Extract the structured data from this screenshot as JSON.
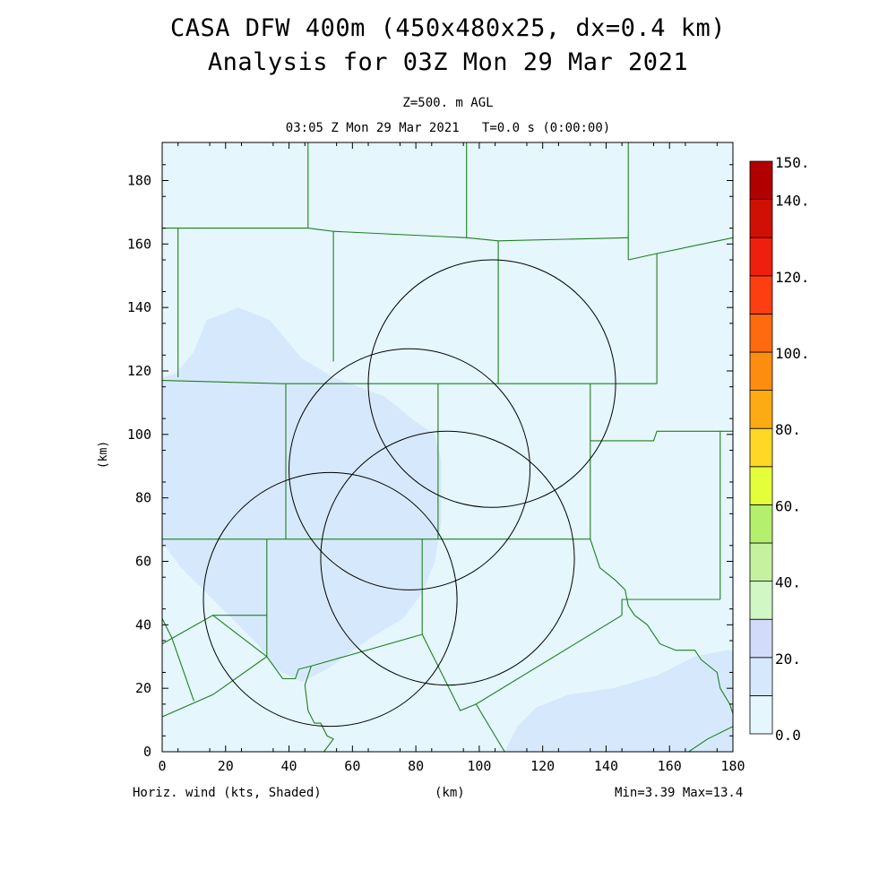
{
  "header": {
    "title_line1": "CASA DFW 400m (450x480x25, dx=0.4 km)",
    "title_line2": "Analysis for 03Z Mon 29 Mar 2021",
    "level": "Z=500. m AGL",
    "time": "03:05 Z Mon 29 Mar 2021   T=0.0 s (0:00:00)"
  },
  "footer": {
    "field": "Horiz. wind (kts, Shaded)",
    "xunit": "(km)",
    "minmax": "Min=3.39 Max=13.4"
  },
  "chart_data": {
    "type": "heatmap",
    "title": "CASA DFW 400m (450x480x25, dx=0.4 km)",
    "subtitle": "Analysis for 03Z Mon 29 Mar 2021",
    "field": "Horiz. wind (kts, Shaded)",
    "xlabel": "(km)",
    "ylabel": "(km)",
    "xlim": [
      0,
      180
    ],
    "ylim": [
      0,
      192
    ],
    "xticks": [
      0,
      20,
      40,
      60,
      80,
      100,
      120,
      140,
      160,
      180
    ],
    "yticks": [
      0,
      20,
      40,
      60,
      80,
      100,
      120,
      140,
      160,
      180
    ],
    "min": 3.39,
    "max": 13.4,
    "colorbar": {
      "levels": [
        0,
        10,
        20,
        30,
        40,
        50,
        60,
        70,
        80,
        90,
        100,
        110,
        120,
        130,
        140,
        150
      ],
      "labels": [
        "0.0",
        "20.",
        "40.",
        "60.",
        "80.",
        "100.",
        "120.",
        "140.",
        "150."
      ],
      "label_values": [
        0,
        20,
        40,
        60,
        80,
        100,
        120,
        140,
        150
      ],
      "colors": [
        "#e5f6fd",
        "#d6e9fc",
        "#d3dbfa",
        "#d0f7c4",
        "#c6f2a0",
        "#b4ef6e",
        "#e4ff3a",
        "#ffd725",
        "#fdab12",
        "#fc8d10",
        "#fe6a0f",
        "#fd3e11",
        "#ee1f0e",
        "#d01004",
        "#b10000"
      ]
    },
    "shaded_regions": [
      {
        "level": "10-20",
        "polygon": [
          [
            0,
            118
          ],
          [
            4,
            119
          ],
          [
            10,
            126
          ],
          [
            14,
            136
          ],
          [
            24,
            140
          ],
          [
            34,
            136
          ],
          [
            44,
            124
          ],
          [
            54,
            118
          ],
          [
            70,
            112
          ],
          [
            80,
            104
          ],
          [
            86,
            100
          ],
          [
            88,
            92
          ],
          [
            88,
            72
          ],
          [
            86,
            60
          ],
          [
            82,
            50
          ],
          [
            76,
            42
          ],
          [
            66,
            36
          ],
          [
            52,
            26
          ],
          [
            44,
            22
          ],
          [
            36,
            26
          ],
          [
            30,
            34
          ],
          [
            24,
            40
          ],
          [
            14,
            50
          ],
          [
            6,
            58
          ],
          [
            0,
            66
          ]
        ]
      },
      {
        "level": "10-20",
        "polygon": [
          [
            108,
            0
          ],
          [
            112,
            8
          ],
          [
            118,
            14
          ],
          [
            128,
            18
          ],
          [
            142,
            20
          ],
          [
            156,
            24
          ],
          [
            168,
            30
          ],
          [
            178,
            32
          ],
          [
            180,
            32
          ],
          [
            180,
            0
          ]
        ]
      }
    ],
    "radar_rings": [
      {
        "center": [
          78,
          89
        ],
        "radius_km": 38
      },
      {
        "center": [
          104,
          116
        ],
        "radius_km": 39
      },
      {
        "center": [
          53,
          48
        ],
        "radius_km": 40
      },
      {
        "center": [
          90,
          61
        ],
        "radius_km": 40
      }
    ],
    "county_lines": [
      [
        [
          0,
          165
        ],
        [
          5,
          165
        ],
        [
          5,
          118
        ]
      ],
      [
        [
          5,
          165
        ],
        [
          46,
          165
        ]
      ],
      [
        [
          46,
          192
        ],
        [
          46,
          165
        ]
      ],
      [
        [
          46,
          165
        ],
        [
          54,
          164
        ],
        [
          54,
          123
        ]
      ],
      [
        [
          54,
          164
        ],
        [
          96,
          162
        ],
        [
          106,
          161
        ]
      ],
      [
        [
          96,
          192
        ],
        [
          96,
          162
        ]
      ],
      [
        [
          106,
          161
        ],
        [
          106,
          116
        ]
      ],
      [
        [
          106,
          161
        ],
        [
          147,
          162
        ]
      ],
      [
        [
          147,
          192
        ],
        [
          147,
          155
        ]
      ],
      [
        [
          147,
          155
        ],
        [
          156,
          157
        ],
        [
          180,
          162
        ]
      ],
      [
        [
          156,
          157
        ],
        [
          156,
          116
        ]
      ],
      [
        [
          0,
          117
        ],
        [
          38,
          116
        ],
        [
          96,
          116
        ],
        [
          156,
          116
        ]
      ],
      [
        [
          39,
          116
        ],
        [
          39,
          67
        ]
      ],
      [
        [
          87,
          116
        ],
        [
          87,
          67
        ]
      ],
      [
        [
          135,
          116
        ],
        [
          135,
          67
        ]
      ],
      [
        [
          135,
          98
        ],
        [
          155,
          98
        ],
        [
          156,
          101
        ],
        [
          176,
          101
        ],
        [
          180,
          101
        ]
      ],
      [
        [
          176,
          101
        ],
        [
          176,
          48
        ]
      ],
      [
        [
          0,
          67
        ],
        [
          33,
          67
        ],
        [
          87,
          67
        ],
        [
          135,
          67
        ]
      ],
      [
        [
          33,
          67
        ],
        [
          33,
          30
        ]
      ],
      [
        [
          82,
          67
        ],
        [
          82,
          37
        ]
      ],
      [
        [
          0,
          34
        ],
        [
          16,
          43
        ],
        [
          33,
          43
        ]
      ],
      [
        [
          16,
          43
        ],
        [
          33,
          30
        ]
      ],
      [
        [
          10,
          16
        ],
        [
          3,
          36
        ],
        [
          0,
          42
        ]
      ],
      [
        [
          0,
          11
        ],
        [
          16,
          18
        ],
        [
          33,
          30
        ],
        [
          38,
          23
        ],
        [
          42,
          23
        ],
        [
          43,
          26
        ],
        [
          47,
          27
        ],
        [
          82,
          37
        ]
      ],
      [
        [
          82,
          37
        ],
        [
          94,
          13
        ],
        [
          99,
          15
        ],
        [
          145,
          43
        ]
      ],
      [
        [
          99,
          15
        ],
        [
          108,
          0
        ]
      ],
      [
        [
          135,
          67
        ],
        [
          138,
          58
        ],
        [
          143,
          54
        ],
        [
          146,
          51
        ],
        [
          147,
          46
        ],
        [
          149,
          43
        ],
        [
          153,
          40
        ],
        [
          157,
          34
        ],
        [
          162,
          32
        ],
        [
          168,
          32
        ],
        [
          170,
          29
        ],
        [
          175,
          25
        ],
        [
          176,
          20
        ],
        [
          179,
          15
        ],
        [
          180,
          12
        ]
      ],
      [
        [
          145,
          43
        ],
        [
          145,
          48
        ],
        [
          176,
          48
        ]
      ],
      [
        [
          166,
          0
        ],
        [
          172,
          4
        ],
        [
          180,
          8
        ]
      ],
      [
        [
          47,
          27
        ],
        [
          45,
          21
        ],
        [
          46,
          13
        ],
        [
          48,
          9
        ],
        [
          50,
          9
        ],
        [
          52,
          5
        ],
        [
          54,
          4
        ],
        [
          51,
          0
        ]
      ]
    ]
  }
}
